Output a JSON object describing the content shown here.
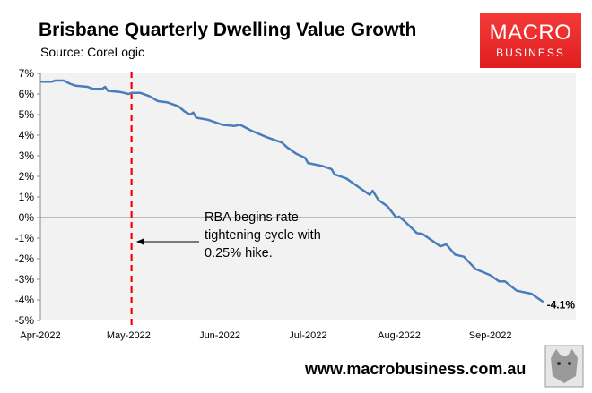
{
  "header": {
    "title": "Brisbane Quarterly Dwelling Value Growth",
    "source": "Source: CoreLogic"
  },
  "logo": {
    "line1": "MACRO",
    "line2": "BUSINESS",
    "color": "#e8262a"
  },
  "footer": {
    "url": "www.macrobusiness.com.au"
  },
  "chart_data": {
    "type": "line",
    "title": "Brisbane Quarterly Dwelling Value Growth",
    "xlabel": "",
    "ylabel": "",
    "ylim": [
      -5,
      7
    ],
    "xlim": [
      "2022-04-01",
      "2022-10-01"
    ],
    "y_ticks": [
      "7%",
      "6%",
      "5%",
      "4%",
      "3%",
      "2%",
      "1%",
      "0%",
      "-1%",
      "-2%",
      "-3%",
      "-4%",
      "-5%"
    ],
    "x_ticks": [
      {
        "date": "2022-04-01",
        "label": "Apr-2022"
      },
      {
        "date": "2022-05-01",
        "label": "May-2022"
      },
      {
        "date": "2022-06-01",
        "label": "Jun-2022"
      },
      {
        "date": "2022-07-01",
        "label": "Jul-2022"
      },
      {
        "date": "2022-08-01",
        "label": "Aug-2022"
      },
      {
        "date": "2022-09-01",
        "label": "Sep-2022"
      }
    ],
    "grid": false,
    "series_color": "#4a7ebb",
    "series": [
      {
        "x": [
          "2022-04-01",
          "2022-04-05",
          "2022-04-06",
          "2022-04-09",
          "2022-04-11",
          "2022-04-13",
          "2022-04-17",
          "2022-04-19",
          "2022-04-22",
          "2022-04-23",
          "2022-04-24",
          "2022-04-28",
          "2022-05-01",
          "2022-05-02",
          "2022-05-05",
          "2022-05-08",
          "2022-05-11",
          "2022-05-14",
          "2022-05-18",
          "2022-05-20",
          "2022-05-22",
          "2022-05-23",
          "2022-05-24",
          "2022-05-28",
          "2022-06-02",
          "2022-06-06",
          "2022-06-08",
          "2022-06-12",
          "2022-06-17",
          "2022-06-22",
          "2022-06-24",
          "2022-06-27",
          "2022-06-30",
          "2022-07-01",
          "2022-07-06",
          "2022-07-08",
          "2022-07-09",
          "2022-07-10",
          "2022-07-14",
          "2022-07-18",
          "2022-07-22",
          "2022-07-23",
          "2022-07-25",
          "2022-07-28",
          "2022-07-31",
          "2022-08-01",
          "2022-08-03",
          "2022-08-07",
          "2022-08-09",
          "2022-08-12",
          "2022-08-15",
          "2022-08-17",
          "2022-08-20",
          "2022-08-23",
          "2022-08-27",
          "2022-09-01",
          "2022-09-04",
          "2022-09-06",
          "2022-09-10",
          "2022-09-15",
          "2022-09-19"
        ],
        "y": [
          6.6,
          6.6,
          6.65,
          6.65,
          6.5,
          6.4,
          6.35,
          6.25,
          6.25,
          6.35,
          6.15,
          6.1,
          6.0,
          6.05,
          6.05,
          5.9,
          5.65,
          5.6,
          5.4,
          5.15,
          5.0,
          5.1,
          4.85,
          4.75,
          4.5,
          4.45,
          4.5,
          4.2,
          3.9,
          3.65,
          3.4,
          3.1,
          2.9,
          2.65,
          2.5,
          2.4,
          2.35,
          2.1,
          1.9,
          1.5,
          1.1,
          1.3,
          0.85,
          0.55,
          0.0,
          0.05,
          -0.2,
          -0.75,
          -0.8,
          -1.1,
          -1.4,
          -1.3,
          -1.8,
          -1.9,
          -2.5,
          -2.8,
          -3.1,
          -3.1,
          -3.55,
          -3.7,
          -4.1
        ]
      }
    ],
    "end_label": "-4.1%",
    "vline": {
      "date": "2022-05-02",
      "color": "#ff0000",
      "style": "dashed"
    },
    "annotation": "RBA begins rate tightening cycle with 0.25% hike."
  }
}
